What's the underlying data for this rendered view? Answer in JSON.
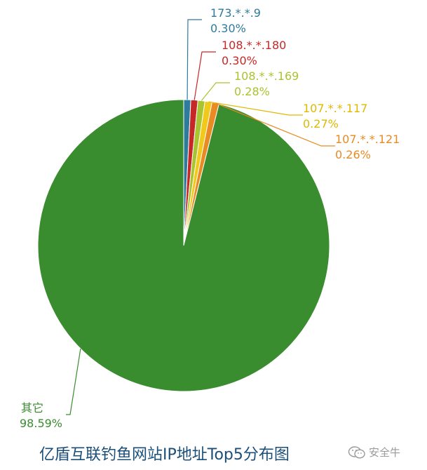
{
  "chart_data": {
    "type": "pie",
    "title": "亿盾互联钓鱼网站IP地址Top5分布图",
    "slices": [
      {
        "name": "173.*.*.9",
        "value": 0.3,
        "label": "0.30%",
        "color": "#2e7b9b"
      },
      {
        "name": "108.*.*.180",
        "value": 0.3,
        "label": "0.30%",
        "color": "#c62828"
      },
      {
        "name": "108.*.*.169",
        "value": 0.28,
        "label": "0.28%",
        "color": "#a8c430"
      },
      {
        "name": "107.*.*.117",
        "value": 0.27,
        "label": "0.27%",
        "color": "#f0c91a"
      },
      {
        "name": "107.*.*.121",
        "value": 0.26,
        "label": "0.26%",
        "color": "#e98a22"
      },
      {
        "name": "其它",
        "value": 98.59,
        "label": "98.59%",
        "color": "#3a8d2f"
      }
    ]
  },
  "watermark": {
    "text": "安全牛",
    "icon": "wechat-icon"
  }
}
